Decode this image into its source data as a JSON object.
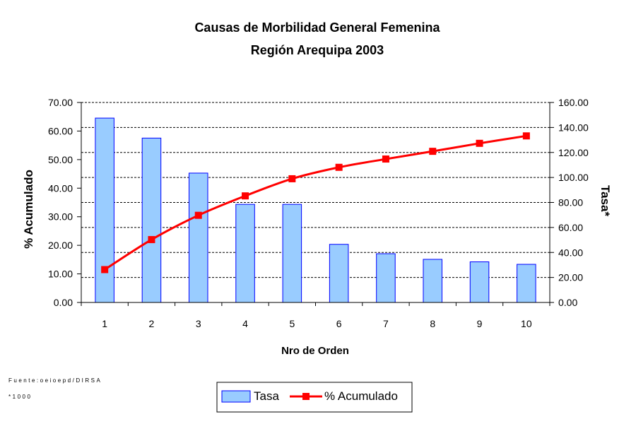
{
  "chart_data": {
    "type": "bar",
    "title": "Causas de Morbilidad General Femenina",
    "subtitle": "Región Arequipa 2003",
    "xlabel": "Nro de Orden",
    "ylabel_left": "% Acumulado",
    "ylabel_right": "Tasa*",
    "categories": [
      "1",
      "2",
      "3",
      "4",
      "5",
      "6",
      "7",
      "8",
      "9",
      "10"
    ],
    "y_left": {
      "lim": [
        0,
        70
      ],
      "ticks": [
        "0.00",
        "10.00",
        "20.00",
        "30.00",
        "40.00",
        "50.00",
        "60.00",
        "70.00"
      ]
    },
    "y_right": {
      "lim": [
        0,
        160
      ],
      "ticks": [
        "0.00",
        "20.00",
        "40.00",
        "60.00",
        "80.00",
        "100.00",
        "120.00",
        "140.00",
        "160.00"
      ]
    },
    "series": [
      {
        "name": "Tasa",
        "type": "bar",
        "axis": "right",
        "color": "#99ccff",
        "edge_color": "#0000ff",
        "values": [
          147.5,
          131.5,
          103.5,
          78.5,
          78.5,
          46.5,
          39.0,
          34.5,
          32.5,
          30.5
        ]
      },
      {
        "name": "% Acumulado",
        "type": "line",
        "axis": "left",
        "color": "#ff0000",
        "values": [
          11.5,
          22.0,
          30.5,
          37.3,
          43.3,
          47.3,
          50.2,
          52.9,
          55.7,
          58.3
        ]
      }
    ],
    "grid": true,
    "legend": "bottom-center"
  },
  "footnotes": {
    "source": "Fuente:oeioepd/DIRSA",
    "note": "*1000"
  }
}
